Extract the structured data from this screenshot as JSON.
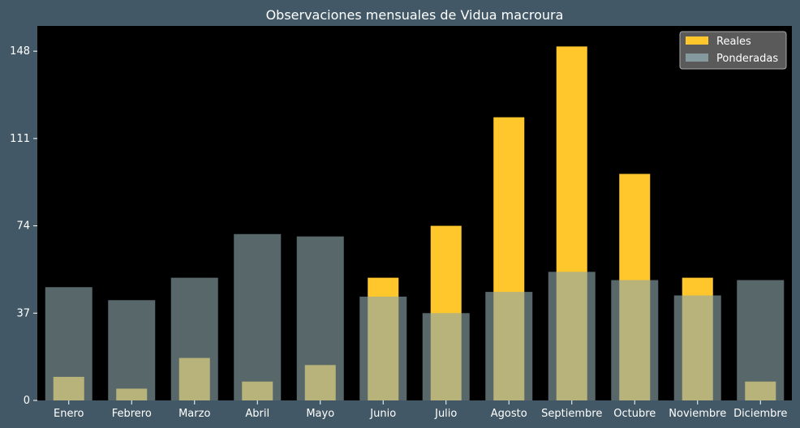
{
  "chart_data": {
    "type": "bar",
    "title": "Observaciones mensuales de Vidua macroura",
    "xlabel": "",
    "ylabel": "",
    "categories": [
      "Enero",
      "Febrero",
      "Marzo",
      "Abril",
      "Mayo",
      "Junio",
      "Julio",
      "Agosto",
      "Septiembre",
      "Octubre",
      "Noviembre",
      "Diciembre"
    ],
    "series": [
      {
        "name": "Reales",
        "color": "#ffc72c",
        "values": [
          10,
          5,
          18,
          8,
          15,
          52,
          74,
          120,
          150,
          96,
          52,
          8
        ]
      },
      {
        "name": "Ponderadas",
        "color": "#8da6ab",
        "values": [
          48,
          42.5,
          52,
          70.5,
          69.5,
          44,
          37,
          46,
          54.5,
          51,
          44.5,
          51
        ]
      }
    ],
    "yticks": [
      0,
      37,
      74,
      111,
      148
    ],
    "ylim": [
      0,
      158.7
    ],
    "grid": false,
    "legend_position": "top-right",
    "plot_background": "#000000",
    "figure_background": "#425866"
  }
}
